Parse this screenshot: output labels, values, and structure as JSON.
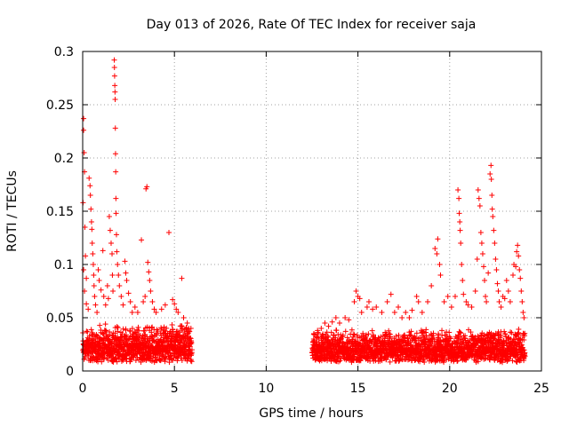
{
  "chart_data": {
    "type": "scatter",
    "title": "Day 013 of 2026, Rate Of TEC Index for receiver saja",
    "xlabel": "GPS time / hours",
    "ylabel": "ROTI / TECUs",
    "xlim": [
      0,
      25
    ],
    "ylim": [
      0,
      0.3
    ],
    "xticks": [
      0,
      5,
      10,
      15,
      20,
      25
    ],
    "xtick_labels": [
      "0",
      "5",
      "10",
      "15",
      "20",
      "25"
    ],
    "yticks": [
      0,
      0.05,
      0.1,
      0.15,
      0.2,
      0.25,
      0.3
    ],
    "ytick_labels": [
      "0",
      "0.05",
      "0.1",
      "0.15",
      "0.2",
      "0.25",
      "0.3"
    ],
    "grid": true,
    "marker": "+",
    "color": "#ff0000",
    "series": [
      {
        "name": "ROTI",
        "points": [
          [
            0.05,
            0.237
          ],
          [
            0.05,
            0.226
          ],
          [
            0.08,
            0.205
          ],
          [
            0.1,
            0.187
          ],
          [
            0.02,
            0.158
          ],
          [
            0.12,
            0.135
          ],
          [
            0.15,
            0.108
          ],
          [
            0.05,
            0.095
          ],
          [
            0.2,
            0.087
          ],
          [
            0.1,
            0.075
          ],
          [
            0.2,
            0.063
          ],
          [
            0.3,
            0.058
          ],
          [
            0.35,
            0.181
          ],
          [
            0.4,
            0.174
          ],
          [
            0.42,
            0.165
          ],
          [
            0.45,
            0.152
          ],
          [
            0.48,
            0.14
          ],
          [
            0.5,
            0.133
          ],
          [
            0.52,
            0.12
          ],
          [
            0.55,
            0.11
          ],
          [
            0.58,
            0.1
          ],
          [
            0.6,
            0.09
          ],
          [
            0.62,
            0.08
          ],
          [
            0.65,
            0.07
          ],
          [
            0.7,
            0.062
          ],
          [
            0.78,
            0.055
          ],
          [
            0.85,
            0.095
          ],
          [
            0.9,
            0.085
          ],
          [
            1.0,
            0.076
          ],
          [
            1.1,
            0.113
          ],
          [
            1.15,
            0.07
          ],
          [
            1.25,
            0.062
          ],
          [
            1.35,
            0.08
          ],
          [
            1.4,
            0.068
          ],
          [
            1.45,
            0.145
          ],
          [
            1.5,
            0.132
          ],
          [
            1.55,
            0.12
          ],
          [
            1.6,
            0.11
          ],
          [
            1.62,
            0.09
          ],
          [
            1.65,
            0.075
          ],
          [
            1.72,
            0.292
          ],
          [
            1.73,
            0.285
          ],
          [
            1.74,
            0.277
          ],
          [
            1.75,
            0.268
          ],
          [
            1.76,
            0.262
          ],
          [
            1.77,
            0.255
          ],
          [
            1.78,
            0.228
          ],
          [
            1.79,
            0.204
          ],
          [
            1.8,
            0.187
          ],
          [
            1.81,
            0.162
          ],
          [
            1.82,
            0.148
          ],
          [
            1.84,
            0.128
          ],
          [
            1.86,
            0.112
          ],
          [
            1.9,
            0.1
          ],
          [
            1.95,
            0.09
          ],
          [
            2.0,
            0.08
          ],
          [
            2.1,
            0.07
          ],
          [
            2.2,
            0.062
          ],
          [
            2.3,
            0.103
          ],
          [
            2.35,
            0.092
          ],
          [
            2.4,
            0.085
          ],
          [
            2.5,
            0.073
          ],
          [
            2.6,
            0.065
          ],
          [
            2.7,
            0.055
          ],
          [
            2.85,
            0.06
          ],
          [
            3.0,
            0.055
          ],
          [
            3.2,
            0.123
          ],
          [
            3.3,
            0.065
          ],
          [
            3.4,
            0.07
          ],
          [
            3.45,
            0.171
          ],
          [
            3.5,
            0.173
          ],
          [
            3.55,
            0.102
          ],
          [
            3.6,
            0.093
          ],
          [
            3.65,
            0.085
          ],
          [
            3.7,
            0.075
          ],
          [
            3.8,
            0.065
          ],
          [
            3.9,
            0.058
          ],
          [
            4.0,
            0.055
          ],
          [
            4.3,
            0.058
          ],
          [
            4.5,
            0.062
          ],
          [
            4.7,
            0.13
          ],
          [
            4.9,
            0.067
          ],
          [
            5.0,
            0.063
          ],
          [
            5.1,
            0.058
          ],
          [
            5.2,
            0.055
          ],
          [
            5.4,
            0.087
          ],
          [
            5.5,
            0.05
          ],
          [
            5.7,
            0.045
          ],
          [
            5.9,
            0.04
          ],
          [
            12.6,
            0.035
          ],
          [
            12.8,
            0.038
          ],
          [
            13.0,
            0.04
          ],
          [
            13.2,
            0.045
          ],
          [
            13.4,
            0.042
          ],
          [
            13.6,
            0.046
          ],
          [
            13.8,
            0.05
          ],
          [
            14.0,
            0.045
          ],
          [
            14.3,
            0.05
          ],
          [
            14.5,
            0.048
          ],
          [
            14.8,
            0.065
          ],
          [
            14.9,
            0.075
          ],
          [
            15.0,
            0.07
          ],
          [
            15.1,
            0.068
          ],
          [
            15.2,
            0.055
          ],
          [
            15.5,
            0.06
          ],
          [
            15.6,
            0.065
          ],
          [
            15.8,
            0.058
          ],
          [
            16.0,
            0.06
          ],
          [
            16.3,
            0.055
          ],
          [
            16.6,
            0.065
          ],
          [
            16.8,
            0.072
          ],
          [
            17.0,
            0.055
          ],
          [
            17.2,
            0.06
          ],
          [
            17.4,
            0.05
          ],
          [
            17.6,
            0.055
          ],
          [
            17.8,
            0.05
          ],
          [
            17.95,
            0.057
          ],
          [
            18.2,
            0.07
          ],
          [
            18.3,
            0.065
          ],
          [
            18.5,
            0.055
          ],
          [
            18.8,
            0.065
          ],
          [
            19.0,
            0.08
          ],
          [
            19.2,
            0.115
          ],
          [
            19.3,
            0.11
          ],
          [
            19.35,
            0.124
          ],
          [
            19.45,
            0.1
          ],
          [
            19.5,
            0.09
          ],
          [
            19.7,
            0.065
          ],
          [
            19.9,
            0.07
          ],
          [
            20.1,
            0.06
          ],
          [
            20.3,
            0.07
          ],
          [
            20.45,
            0.17
          ],
          [
            20.5,
            0.162
          ],
          [
            20.52,
            0.148
          ],
          [
            20.55,
            0.14
          ],
          [
            20.57,
            0.132
          ],
          [
            20.6,
            0.12
          ],
          [
            20.65,
            0.1
          ],
          [
            20.7,
            0.085
          ],
          [
            20.75,
            0.072
          ],
          [
            20.9,
            0.065
          ],
          [
            21.0,
            0.062
          ],
          [
            21.2,
            0.06
          ],
          [
            21.4,
            0.075
          ],
          [
            21.5,
            0.105
          ],
          [
            21.55,
            0.17
          ],
          [
            21.6,
            0.162
          ],
          [
            21.65,
            0.155
          ],
          [
            21.7,
            0.13
          ],
          [
            21.75,
            0.12
          ],
          [
            21.8,
            0.11
          ],
          [
            21.85,
            0.098
          ],
          [
            21.9,
            0.085
          ],
          [
            21.95,
            0.07
          ],
          [
            22.0,
            0.065
          ],
          [
            22.1,
            0.092
          ],
          [
            22.2,
            0.185
          ],
          [
            22.25,
            0.193
          ],
          [
            22.27,
            0.18
          ],
          [
            22.3,
            0.165
          ],
          [
            22.32,
            0.152
          ],
          [
            22.35,
            0.145
          ],
          [
            22.4,
            0.132
          ],
          [
            22.45,
            0.12
          ],
          [
            22.5,
            0.105
          ],
          [
            22.55,
            0.095
          ],
          [
            22.6,
            0.082
          ],
          [
            22.65,
            0.075
          ],
          [
            22.7,
            0.065
          ],
          [
            22.8,
            0.06
          ],
          [
            22.9,
            0.07
          ],
          [
            23.0,
            0.068
          ],
          [
            23.1,
            0.085
          ],
          [
            23.2,
            0.075
          ],
          [
            23.3,
            0.065
          ],
          [
            23.45,
            0.09
          ],
          [
            23.5,
            0.1
          ],
          [
            23.6,
            0.098
          ],
          [
            23.65,
            0.112
          ],
          [
            23.7,
            0.118
          ],
          [
            23.75,
            0.108
          ],
          [
            23.8,
            0.095
          ],
          [
            23.85,
            0.087
          ],
          [
            23.9,
            0.075
          ],
          [
            23.95,
            0.065
          ],
          [
            24.0,
            0.055
          ],
          [
            24.05,
            0.05
          ]
        ]
      }
    ],
    "dense_band": [
      {
        "x_start": 0.0,
        "x_end": 5.95,
        "y_low": 0.008,
        "y_high": 0.045
      },
      {
        "x_start": 12.5,
        "x_end": 24.1,
        "y_low": 0.008,
        "y_high": 0.04
      }
    ]
  }
}
